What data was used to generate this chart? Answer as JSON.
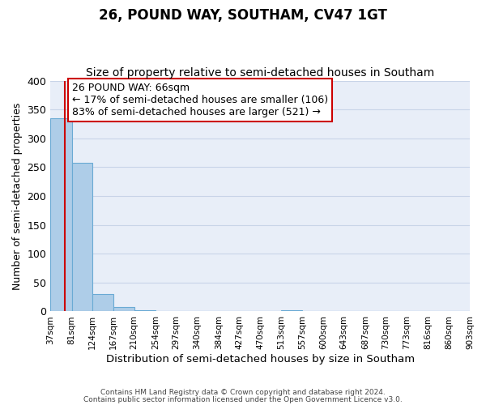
{
  "title": "26, POUND WAY, SOUTHAM, CV47 1GT",
  "subtitle": "Size of property relative to semi-detached houses in Southam",
  "xlabel": "Distribution of semi-detached houses by size in Southam",
  "ylabel": "Number of semi-detached properties",
  "footer_line1": "Contains HM Land Registry data © Crown copyright and database right 2024.",
  "footer_line2": "Contains public sector information licensed under the Open Government Licence v3.0.",
  "bin_edges": [
    37,
    81,
    124,
    167,
    210,
    254,
    297,
    340,
    384,
    427,
    470,
    513,
    557,
    600,
    643,
    687,
    730,
    773,
    816,
    860,
    903
  ],
  "bin_counts": [
    335,
    258,
    30,
    7,
    2,
    0,
    0,
    0,
    0,
    0,
    0,
    2,
    0,
    0,
    0,
    0,
    0,
    0,
    0,
    0
  ],
  "bar_color": "#aecde8",
  "bar_edge_color": "#6aaad4",
  "property_size": 66,
  "property_line_color": "#cc0000",
  "annotation_text_line1": "26 POUND WAY: 66sqm",
  "annotation_text_line2": "← 17% of semi-detached houses are smaller (106)",
  "annotation_text_line3": "83% of semi-detached houses are larger (521) →",
  "annotation_box_color": "#cc0000",
  "ylim": [
    0,
    400
  ],
  "yticks": [
    0,
    50,
    100,
    150,
    200,
    250,
    300,
    350,
    400
  ],
  "grid_color": "#c8d4e8",
  "background_color": "#e8eef8",
  "title_fontsize": 12,
  "subtitle_fontsize": 10,
  "tick_labels": [
    "37sqm",
    "81sqm",
    "124sqm",
    "167sqm",
    "210sqm",
    "254sqm",
    "297sqm",
    "340sqm",
    "384sqm",
    "427sqm",
    "470sqm",
    "513sqm",
    "557sqm",
    "600sqm",
    "643sqm",
    "687sqm",
    "730sqm",
    "773sqm",
    "816sqm",
    "860sqm",
    "903sqm"
  ],
  "annotation_fontsize": 9,
  "ylabel_fontsize": 9,
  "xlabel_fontsize": 9.5
}
